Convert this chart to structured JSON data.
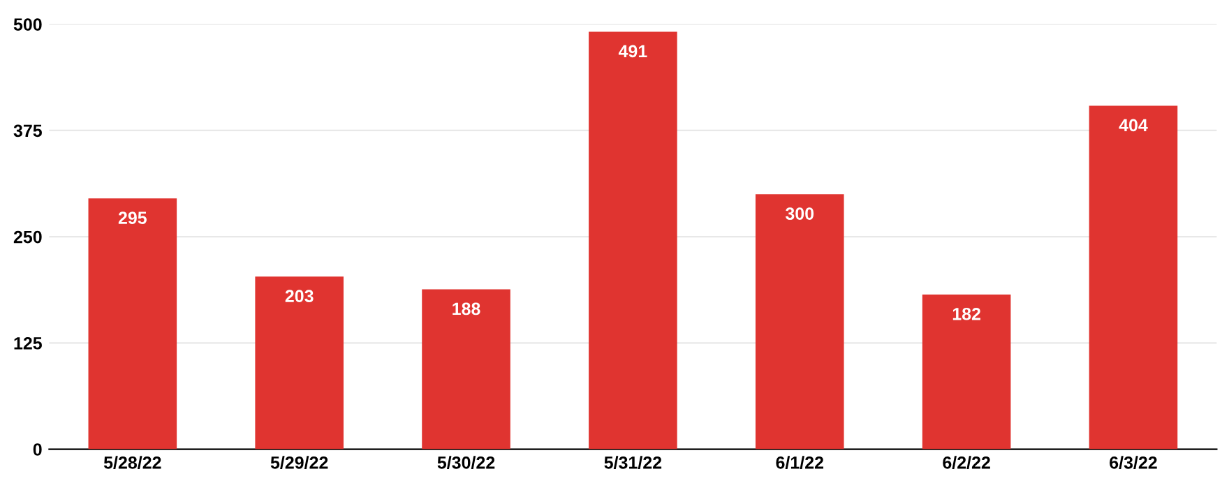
{
  "chart_data": {
    "type": "bar",
    "categories": [
      "5/28/22",
      "5/29/22",
      "5/30/22",
      "5/31/22",
      "6/1/22",
      "6/2/22",
      "6/3/22"
    ],
    "values": [
      295,
      203,
      188,
      491,
      300,
      182,
      404
    ],
    "color": "#e03430",
    "ylim": [
      0,
      500
    ],
    "yticks": [
      0,
      125,
      250,
      375,
      500
    ],
    "grid": "y",
    "data_labels": true
  }
}
